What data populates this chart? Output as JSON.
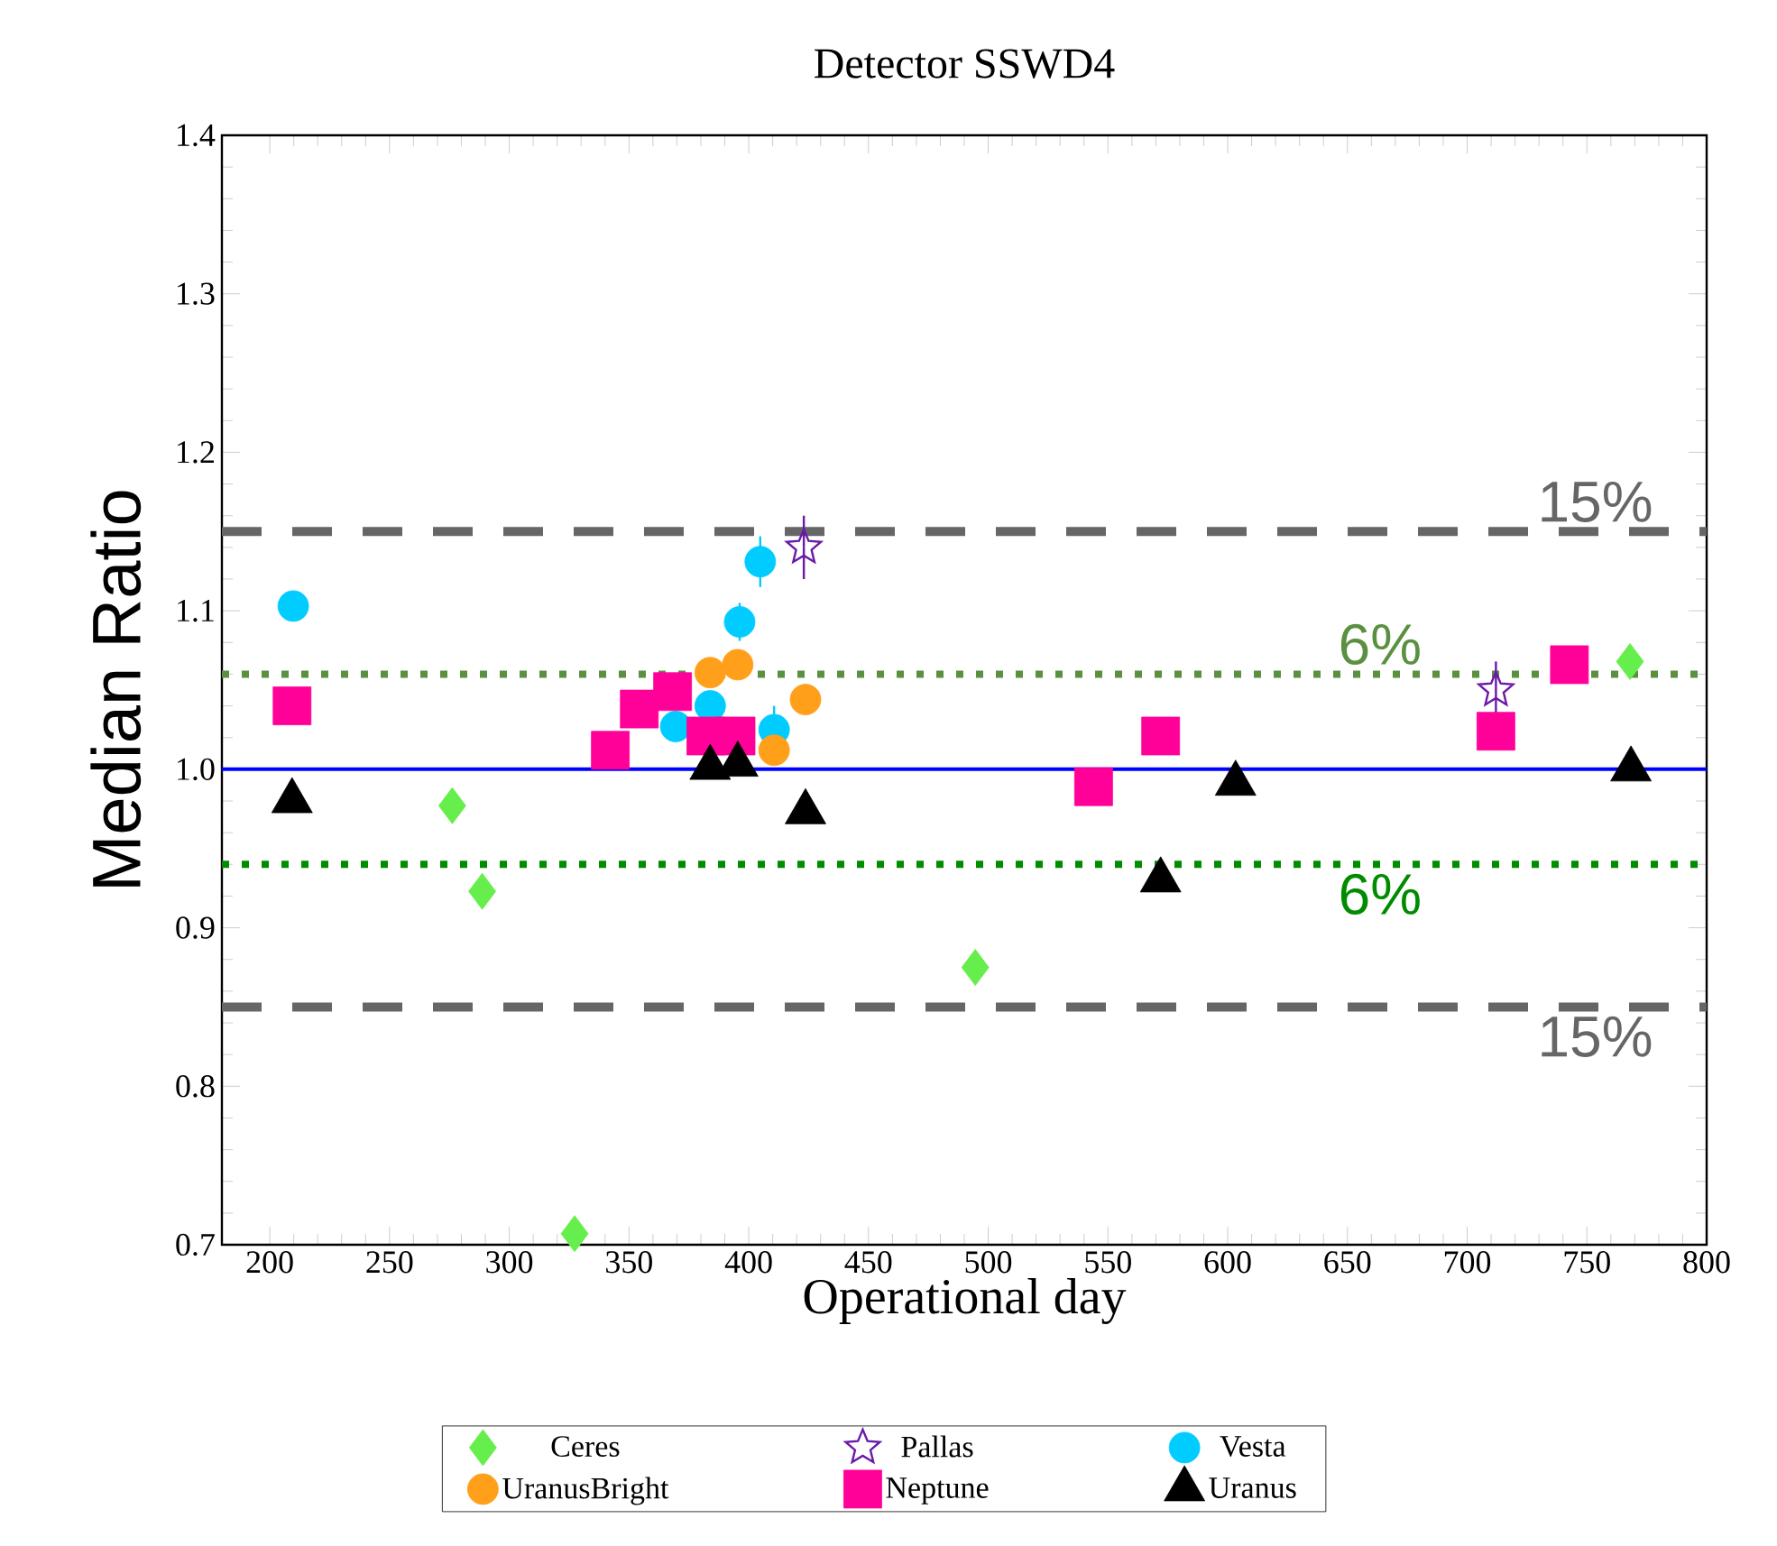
{
  "chart_data": {
    "type": "scatter",
    "title": "Detector SSWD4",
    "xlabel": "Operational day",
    "ylabel": "Median Ratio",
    "xlim": [
      180,
      800
    ],
    "ylim": [
      0.7,
      1.4
    ],
    "xticks": [
      200,
      250,
      300,
      350,
      400,
      450,
      500,
      550,
      600,
      650,
      700,
      750,
      800
    ],
    "yticks": [
      0.7,
      0.8,
      0.9,
      {
        "value": 1.0,
        "label": "1.0"
      },
      1.1,
      1.2,
      1.3,
      1.4
    ],
    "grid": false,
    "legend": "bottom",
    "series": [
      {
        "name": "Ceres",
        "color": "#66ee4c",
        "marker": "diamond",
        "x": [
          276.2,
          288.7,
          327.3,
          494.6,
          768
        ],
        "values": [
          0.977,
          0.923,
          0.707,
          0.875,
          1.068
        ]
      },
      {
        "name": "Pallas",
        "color": "#6a1aa8",
        "marker": "star",
        "x": [
          423,
          712
        ],
        "values": [
          1.14,
          1.05
        ],
        "errors": [
          0.02,
          0.018
        ]
      },
      {
        "name": "Vesta",
        "color": "#00ccff",
        "marker": "circle",
        "x": [
          209.8,
          369.5,
          383.9,
          396.2,
          404.8,
          410.6
        ],
        "values": [
          1.103,
          1.027,
          1.04,
          1.093,
          1.131,
          1.025
        ],
        "errors": [
          null,
          null,
          null,
          0.012,
          0.016,
          0.015
        ]
      },
      {
        "name": "UranusBright",
        "color": "#ff9f1a",
        "marker": "circle",
        "x": [
          383.9,
          395.4,
          410.6,
          423.7
        ],
        "values": [
          1.061,
          1.066,
          1.012,
          1.044
        ]
      },
      {
        "name": "Neptune",
        "color": "#ff0099",
        "marker": "square",
        "x": [
          209.3,
          342.2,
          354.3,
          368.2,
          382.1,
          394.7,
          544,
          572,
          712,
          742.7
        ],
        "values": [
          1.04,
          1.012,
          1.038,
          1.049,
          1.021,
          1.021,
          0.989,
          1.021,
          1.024,
          1.066
        ]
      },
      {
        "name": "Uranus",
        "color": "#000000",
        "marker": "triangle",
        "x": [
          209.3,
          383.9,
          395.4,
          423.7,
          572,
          603.3,
          768.4
        ],
        "values": [
          0.98,
          1.001,
          1.003,
          0.973,
          0.93,
          0.991,
          1.0
        ]
      }
    ],
    "ref_lines": [
      {
        "axis": "y",
        "value": 1.0,
        "color": "#0000ff",
        "line_style": "solid"
      },
      {
        "axis": "y",
        "value": 1.06,
        "color": "#5a9040",
        "line_style": "dotted"
      },
      {
        "axis": "y",
        "value": 0.94,
        "color": "#008c00",
        "line_style": "dotted"
      },
      {
        "axis": "y",
        "value": 1.15,
        "color": "#666666",
        "line_style": "dashed"
      },
      {
        "axis": "y",
        "value": 0.85,
        "color": "#666666",
        "line_style": "dashed"
      }
    ],
    "annotations": [
      {
        "text": "15%",
        "y": 1.15
      },
      {
        "text": "6%",
        "y": 1.06
      },
      {
        "text": "6%",
        "y": 0.94
      },
      {
        "text": "15%",
        "y": 0.85
      }
    ]
  }
}
